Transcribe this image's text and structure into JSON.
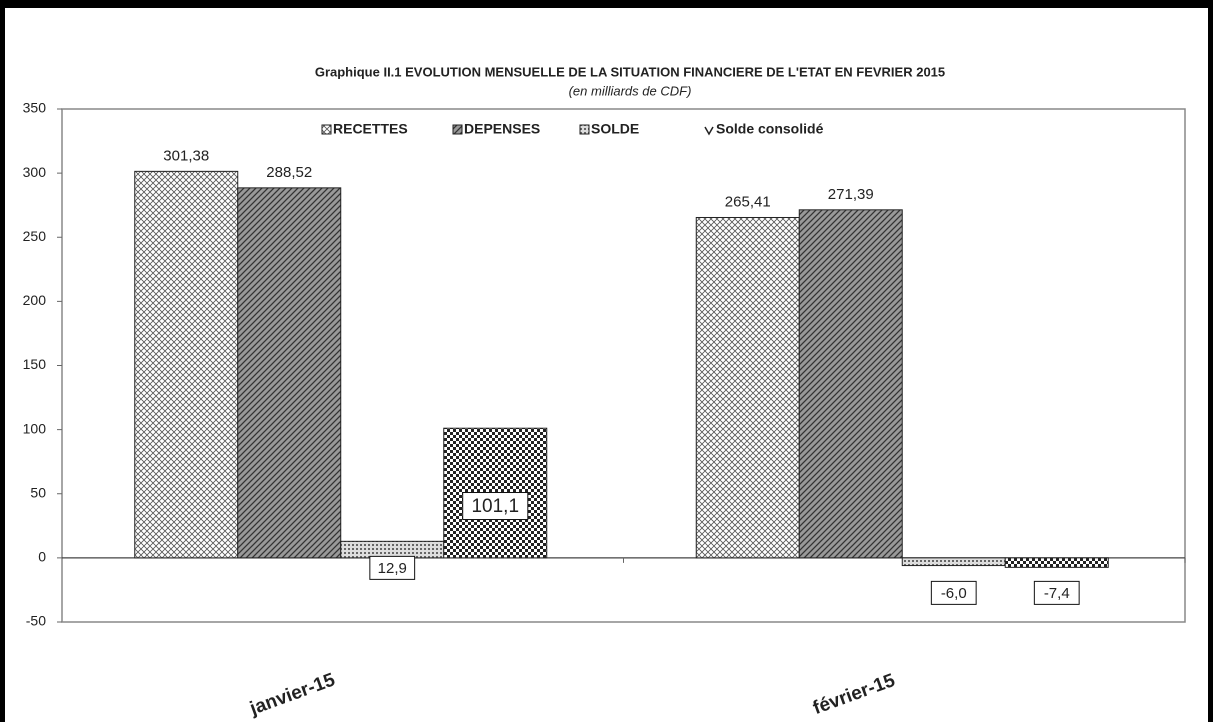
{
  "chart_data": {
    "type": "bar",
    "title": "Graphique II.1  EVOLUTION MENSUELLE DE LA SITUATION FINANCIERE DE L'ETAT EN  FEVRIER  2015",
    "subtitle": "(en milliards de CDF)",
    "categories": [
      "janvier-15",
      "février-15"
    ],
    "series": [
      {
        "name": "RECETTES",
        "color": "#555555",
        "values": [
          301.38,
          265.41
        ],
        "value_labels": [
          "301,38",
          "265,41"
        ]
      },
      {
        "name": "DEPENSES",
        "color": "#333333",
        "values": [
          288.52,
          271.39
        ],
        "value_labels": [
          "288,52",
          "271,39"
        ]
      },
      {
        "name": "SOLDE",
        "color": "#666666",
        "values": [
          12.9,
          -6.0
        ],
        "value_labels": [
          "12,9",
          "-6,0"
        ]
      },
      {
        "name": "Solde consolidé",
        "color": "#222222",
        "values": [
          101.1,
          -7.4
        ],
        "value_labels": [
          "101,1",
          "-7,4"
        ]
      }
    ],
    "ylim": [
      -50,
      350
    ],
    "yticks": [
      -50,
      0,
      50,
      100,
      150,
      200,
      250,
      300,
      350
    ],
    "grid": false,
    "legend": "top"
  }
}
